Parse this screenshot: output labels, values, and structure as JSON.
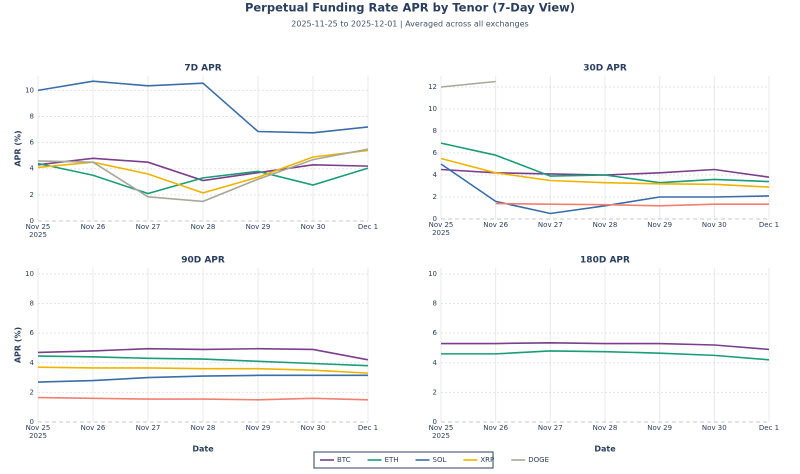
{
  "title": "Perpetual Funding Rate APR by Tenor (7-Day View)",
  "subtitle": "2025-11-25 to 2025-12-01 | Averaged across all exchanges",
  "chart_data": [
    {
      "type": "line",
      "title": "7D APR",
      "y_label": "APR (%)",
      "categories": [
        "Nov 25",
        "Nov 26",
        "Nov 27",
        "Nov 28",
        "Nov 29",
        "Nov 30",
        "Dec 1"
      ],
      "year_label": "2025",
      "ylim": [
        0,
        11.1
      ],
      "yticks": [
        0,
        2,
        4,
        6,
        8,
        10
      ],
      "grid": true,
      "series": [
        {
          "name": "BTC",
          "color": "#7b3f8c",
          "values": [
            4.3,
            4.8,
            4.5,
            3.1,
            3.7,
            4.3,
            4.2
          ]
        },
        {
          "name": "ETH",
          "color": "#1a9e77",
          "values": [
            4.4,
            3.5,
            2.1,
            3.3,
            3.8,
            2.75,
            4.05
          ]
        },
        {
          "name": "SOL",
          "color": "#3a6ea8",
          "values": [
            10.0,
            10.7,
            10.35,
            10.55,
            6.85,
            6.75,
            7.2
          ]
        },
        {
          "name": "XRP",
          "color": "#f0b400",
          "values": [
            4.1,
            4.5,
            3.6,
            2.15,
            3.35,
            4.9,
            5.4
          ]
        },
        {
          "name": "DOGE",
          "color": "#a8a898",
          "values": [
            4.6,
            4.5,
            1.85,
            1.5,
            3.2,
            4.7,
            5.5
          ]
        }
      ]
    },
    {
      "type": "line",
      "title": "30D APR",
      "categories": [
        "Nov 25",
        "Nov 26",
        "Nov 27",
        "Nov 28",
        "Nov 29",
        "Nov 30",
        "Dec 1"
      ],
      "year_label": "2025",
      "ylim": [
        0,
        13
      ],
      "yticks": [
        0,
        2,
        4,
        6,
        8,
        10,
        12
      ],
      "grid": true,
      "series": [
        {
          "name": "BTC",
          "color": "#7b3f8c",
          "values": [
            4.5,
            4.2,
            4.1,
            4.0,
            4.2,
            4.5,
            3.8
          ]
        },
        {
          "name": "ETH",
          "color": "#1a9e77",
          "values": [
            6.9,
            5.8,
            3.9,
            4.0,
            3.3,
            3.6,
            3.4
          ]
        },
        {
          "name": "SOL",
          "color": "#3a6ea8",
          "values": [
            5.0,
            1.6,
            0.5,
            1.2,
            2.0,
            2.0,
            2.1
          ]
        },
        {
          "name": "XRP",
          "color": "#f0b400",
          "values": [
            5.5,
            4.2,
            3.5,
            3.3,
            3.2,
            3.15,
            2.9
          ]
        },
        {
          "name": "DOGE",
          "color": "#a8a898",
          "values": [
            12.0,
            12.5,
            null,
            null,
            null,
            null,
            null
          ]
        },
        {
          "color": "#f08070",
          "values": [
            null,
            1.4,
            1.35,
            1.3,
            1.2,
            1.35,
            1.35
          ]
        }
      ]
    },
    {
      "type": "line",
      "title": "90D APR",
      "y_label": "APR (%)",
      "x_label": "Date",
      "categories": [
        "Nov 25",
        "Nov 26",
        "Nov 27",
        "Nov 28",
        "Nov 29",
        "Nov 30",
        "Dec 1"
      ],
      "year_label": "2025",
      "ylim": [
        0,
        10.4
      ],
      "yticks": [
        0,
        2,
        4,
        6,
        8,
        10
      ],
      "grid": true,
      "series": [
        {
          "name": "BTC",
          "color": "#7b3f8c",
          "values": [
            4.7,
            4.8,
            4.95,
            4.9,
            4.95,
            4.9,
            4.2
          ]
        },
        {
          "name": "ETH",
          "color": "#1a9e77",
          "values": [
            4.45,
            4.4,
            4.3,
            4.25,
            4.1,
            3.95,
            3.8
          ]
        },
        {
          "name": "SOL",
          "color": "#3a6ea8",
          "values": [
            2.7,
            2.8,
            3.0,
            3.1,
            3.15,
            3.15,
            3.15
          ]
        },
        {
          "name": "XRP",
          "color": "#f0b400",
          "values": [
            3.7,
            3.65,
            3.65,
            3.6,
            3.6,
            3.5,
            3.3
          ]
        },
        {
          "color": "#f08070",
          "values": [
            1.65,
            1.6,
            1.55,
            1.55,
            1.5,
            1.6,
            1.5
          ]
        }
      ]
    },
    {
      "type": "line",
      "title": "180D APR",
      "x_label": "Date",
      "categories": [
        "Nov 25",
        "Nov 26",
        "Nov 27",
        "Nov 28",
        "Nov 29",
        "Nov 30",
        "Dec 1"
      ],
      "year_label": "2025",
      "ylim": [
        0,
        10.4
      ],
      "yticks": [
        0,
        2,
        4,
        6,
        8,
        10
      ],
      "grid": true,
      "series": [
        {
          "name": "BTC",
          "color": "#7b3f8c",
          "values": [
            5.3,
            5.3,
            5.35,
            5.3,
            5.3,
            5.2,
            4.9
          ]
        },
        {
          "name": "ETH",
          "color": "#1a9e77",
          "values": [
            4.6,
            4.6,
            4.8,
            4.75,
            4.65,
            4.5,
            4.2
          ]
        }
      ]
    }
  ]
}
